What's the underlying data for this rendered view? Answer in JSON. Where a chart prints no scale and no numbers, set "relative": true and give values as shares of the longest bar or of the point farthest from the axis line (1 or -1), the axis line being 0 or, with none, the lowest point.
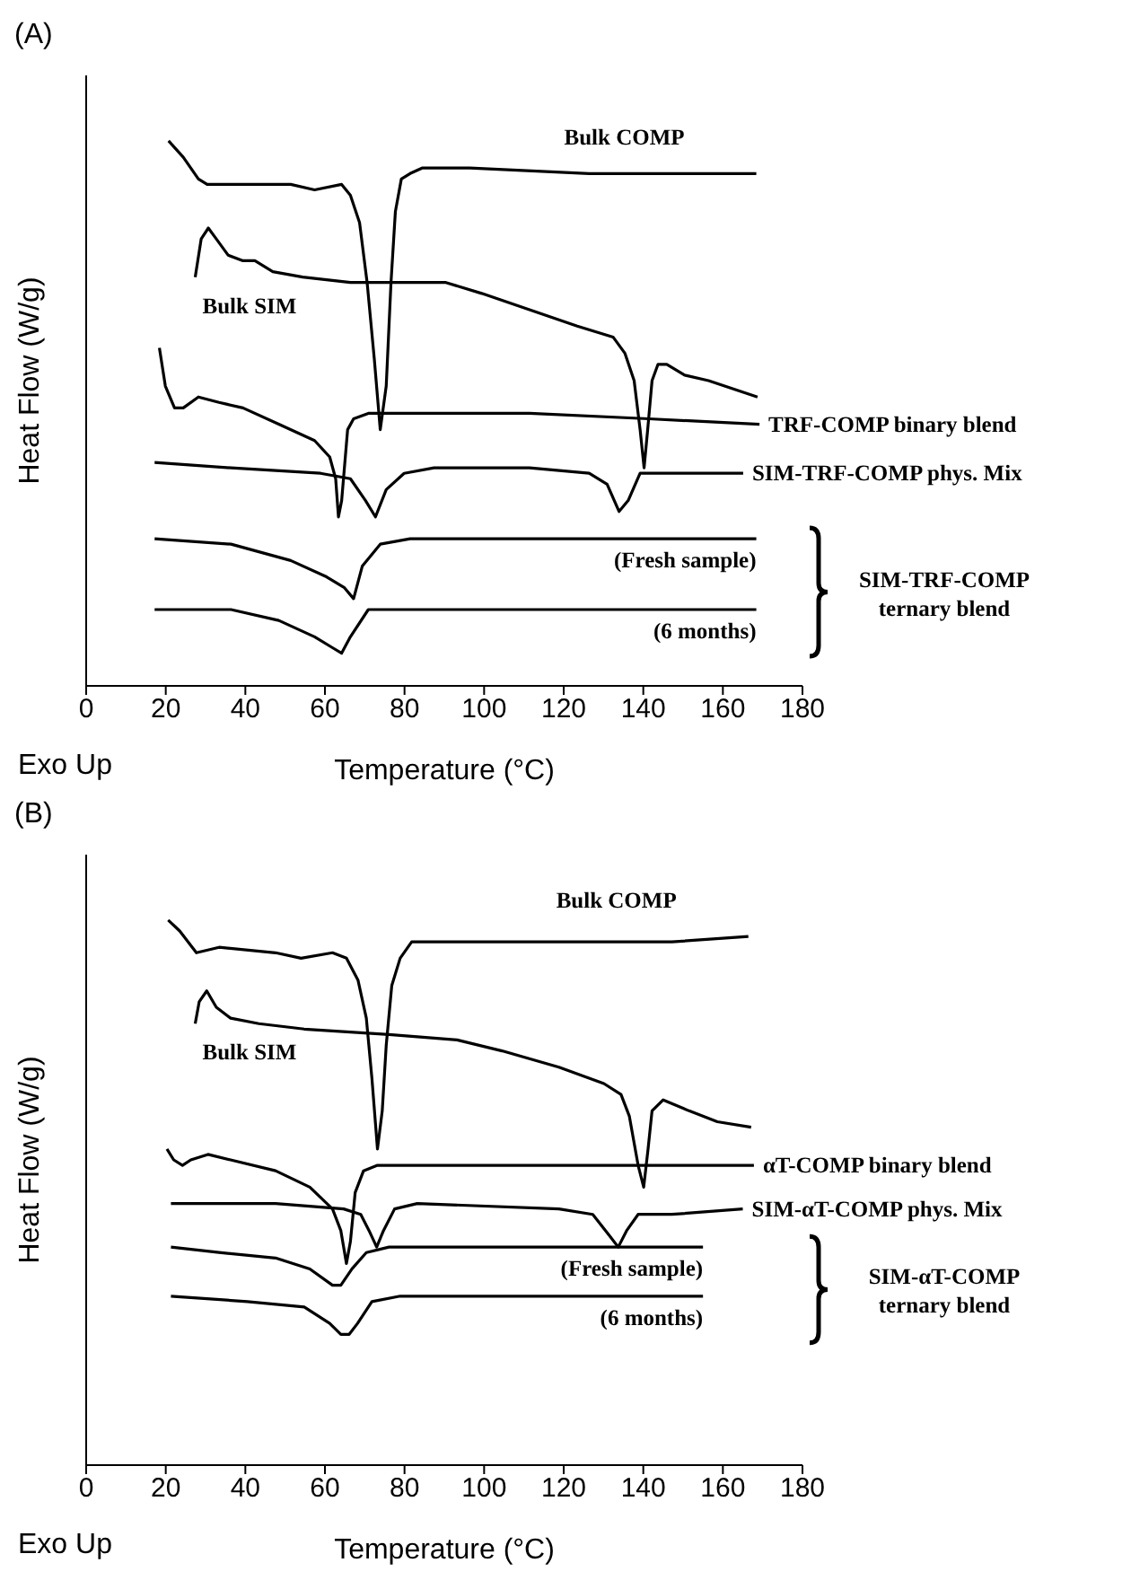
{
  "chart_data": [
    {
      "type": "line",
      "title": "(A)",
      "xlabel": "Temperature (°C)",
      "ylabel": "Heat Flow (W/g)",
      "annotations": [
        "Exo Up",
        "SIM-TRF-COMP ternary blend"
      ],
      "relative": true,
      "xlim": [
        0,
        180
      ],
      "xticks": [
        0,
        20,
        40,
        60,
        80,
        100,
        120,
        140,
        160,
        180
      ],
      "series": [
        {
          "name": "Bulk COMP",
          "color": "#000000",
          "x": [
            20.7,
            24.4,
            28.2,
            30.4,
            36.4,
            43.9,
            51.4,
            57.4,
            64.2,
            66.4,
            68.7,
            70.6,
            72.4,
            73.9,
            75.4,
            76.6,
            77.7,
            79.2,
            81.4,
            84.4,
            96.4,
            126.4,
            168.4
          ],
          "values": [
            1,
            0.97,
            0.93,
            0.92,
            0.92,
            0.92,
            0.92,
            0.91,
            0.92,
            0.9,
            0.85,
            0.74,
            0.6,
            0.47,
            0.55,
            0.74,
            0.87,
            0.93,
            0.94,
            0.95,
            0.95,
            0.94,
            0.94
          ]
        },
        {
          "name": "Bulk SIM",
          "color": "#000000",
          "x": [
            27.4,
            28.9,
            30.7,
            32.7,
            35.7,
            39.4,
            42.4,
            46.9,
            54.4,
            66.4,
            81.4,
            90.4,
            99.4,
            111.4,
            123.4,
            132.4,
            135.4,
            137.7,
            139.2,
            140.2,
            141.1,
            142.2,
            143.7,
            145.9,
            150.4,
            156.4,
            168.7
          ],
          "values": [
            0.75,
            0.82,
            0.84,
            0.82,
            0.79,
            0.78,
            0.78,
            0.76,
            0.75,
            0.74,
            0.74,
            0.74,
            0.72,
            0.69,
            0.66,
            0.64,
            0.61,
            0.56,
            0.47,
            0.4,
            0.47,
            0.56,
            0.59,
            0.59,
            0.57,
            0.56,
            0.53
          ]
        },
        {
          "name": "TRF-COMP binary blend",
          "color": "#000000",
          "x": [
            18.4,
            19.9,
            22.2,
            24.4,
            28.2,
            33.4,
            39.4,
            48.4,
            57.4,
            61.2,
            62.7,
            63.4,
            64.2,
            65.7,
            67.2,
            70.9,
            81.4,
            111.4,
            141.4,
            169.2
          ],
          "values": [
            0.62,
            0.55,
            0.51,
            0.51,
            0.53,
            0.52,
            0.51,
            0.48,
            0.45,
            0.42,
            0.38,
            0.31,
            0.34,
            0.47,
            0.49,
            0.5,
            0.5,
            0.5,
            0.49,
            0.48
          ]
        },
        {
          "name": "SIM-TRF-COMP phys. Mix",
          "color": "#000000",
          "x": [
            17.2,
            36.4,
            58.9,
            66.4,
            70.2,
            72.7,
            75.4,
            79.9,
            87.4,
            111.4,
            126.4,
            130.9,
            133.9,
            136.2,
            139.2,
            148.9,
            165.1
          ],
          "values": [
            0.41,
            0.4,
            0.39,
            0.38,
            0.34,
            0.31,
            0.36,
            0.39,
            0.4,
            0.4,
            0.39,
            0.37,
            0.32,
            0.34,
            0.39,
            0.39,
            0.39
          ]
        },
        {
          "name": "(Fresh sample)",
          "color": "#000000",
          "x": [
            17.2,
            36.4,
            51.4,
            60.4,
            64.9,
            67.2,
            69.4,
            73.9,
            81.4,
            126.4,
            168.4
          ],
          "values": [
            0.27,
            0.26,
            0.23,
            0.2,
            0.18,
            0.16,
            0.22,
            0.26,
            0.27,
            0.27,
            0.27
          ]
        },
        {
          "name": "(6 months)",
          "color": "#000000",
          "x": [
            17.2,
            36.4,
            48.4,
            57.4,
            61.9,
            64.2,
            66.4,
            70.9,
            81.4,
            168.4
          ],
          "values": [
            0.14,
            0.14,
            0.12,
            0.09,
            0.07,
            0.06,
            0.09,
            0.14,
            0.14,
            0.14
          ]
        }
      ]
    },
    {
      "type": "line",
      "title": "(B)",
      "xlabel": "Temperature (°C)",
      "ylabel": "Heat Flow (W/g)",
      "annotations": [
        "Exo Up",
        "SIM-αT-COMP ternary blend"
      ],
      "relative": true,
      "xlim": [
        0,
        180
      ],
      "xticks": [
        0,
        20,
        40,
        60,
        80,
        100,
        120,
        140,
        160,
        180
      ],
      "series": [
        {
          "name": "Bulk COMP",
          "color": "#000000",
          "x": [
            20.6,
            23.5,
            27.7,
            33.4,
            47.6,
            54.0,
            61.9,
            65.4,
            68.3,
            70.4,
            71.8,
            73.2,
            74.4,
            75.4,
            76.8,
            78.9,
            81.8,
            90.3,
            118.8,
            147.2,
            166.4
          ],
          "values": [
            1,
            0.98,
            0.94,
            0.95,
            0.94,
            0.93,
            0.94,
            0.93,
            0.89,
            0.82,
            0.71,
            0.58,
            0.65,
            0.77,
            0.88,
            0.93,
            0.96,
            0.96,
            0.96,
            0.96,
            0.97
          ]
        },
        {
          "name": "Bulk SIM",
          "color": "#000000",
          "x": [
            27.4,
            28.4,
            30.3,
            32.7,
            36.3,
            43.4,
            54.8,
            76.1,
            93.2,
            104.5,
            118.8,
            130.1,
            134.4,
            136.5,
            138.7,
            140.1,
            141.2,
            142.2,
            145.0,
            151.5,
            158.6,
            167.1
          ],
          "values": [
            0.81,
            0.85,
            0.87,
            0.84,
            0.82,
            0.81,
            0.8,
            0.79,
            0.78,
            0.76,
            0.73,
            0.7,
            0.68,
            0.64,
            0.55,
            0.51,
            0.58,
            0.65,
            0.67,
            0.65,
            0.63,
            0.62
          ]
        },
        {
          "name": "αT-COMP binary blend",
          "color": "#000000",
          "x": [
            20.3,
            22.0,
            24.2,
            26.3,
            30.6,
            36.3,
            47.6,
            56.2,
            61.9,
            64.0,
            65.4,
            66.4,
            67.6,
            69.7,
            73.2,
            104.5,
            133.0,
            167.8
          ],
          "values": [
            0.58,
            0.56,
            0.55,
            0.56,
            0.57,
            0.56,
            0.54,
            0.51,
            0.47,
            0.43,
            0.37,
            0.41,
            0.5,
            0.54,
            0.55,
            0.55,
            0.55,
            0.55
          ]
        },
        {
          "name": "SIM-αT-COMP phys. Mix",
          "color": "#000000",
          "x": [
            21.3,
            47.6,
            64.7,
            69.0,
            71.1,
            73.0,
            74.7,
            77.5,
            83.2,
            118.8,
            127.3,
            131.6,
            133.7,
            135.8,
            138.7,
            147.2,
            165.0
          ],
          "values": [
            0.48,
            0.48,
            0.47,
            0.46,
            0.43,
            0.4,
            0.43,
            0.47,
            0.48,
            0.47,
            0.46,
            0.42,
            0.4,
            0.43,
            0.46,
            0.46,
            0.47
          ]
        },
        {
          "name": "(Fresh sample)",
          "color": "#000000",
          "x": [
            21.3,
            33.4,
            47.6,
            56.2,
            61.9,
            64.0,
            66.8,
            70.4,
            76.1,
            118.8,
            155.0
          ],
          "values": [
            0.4,
            0.39,
            0.38,
            0.36,
            0.33,
            0.33,
            0.36,
            0.39,
            0.4,
            0.4,
            0.4
          ]
        },
        {
          "name": "(6 months)",
          "color": "#000000",
          "x": [
            21.3,
            40.5,
            54.8,
            61.2,
            64.0,
            66.1,
            68.2,
            71.8,
            78.9,
            118.8,
            155.0
          ],
          "values": [
            0.31,
            0.3,
            0.29,
            0.26,
            0.24,
            0.24,
            0.26,
            0.3,
            0.31,
            0.31,
            0.31
          ]
        }
      ]
    }
  ]
}
